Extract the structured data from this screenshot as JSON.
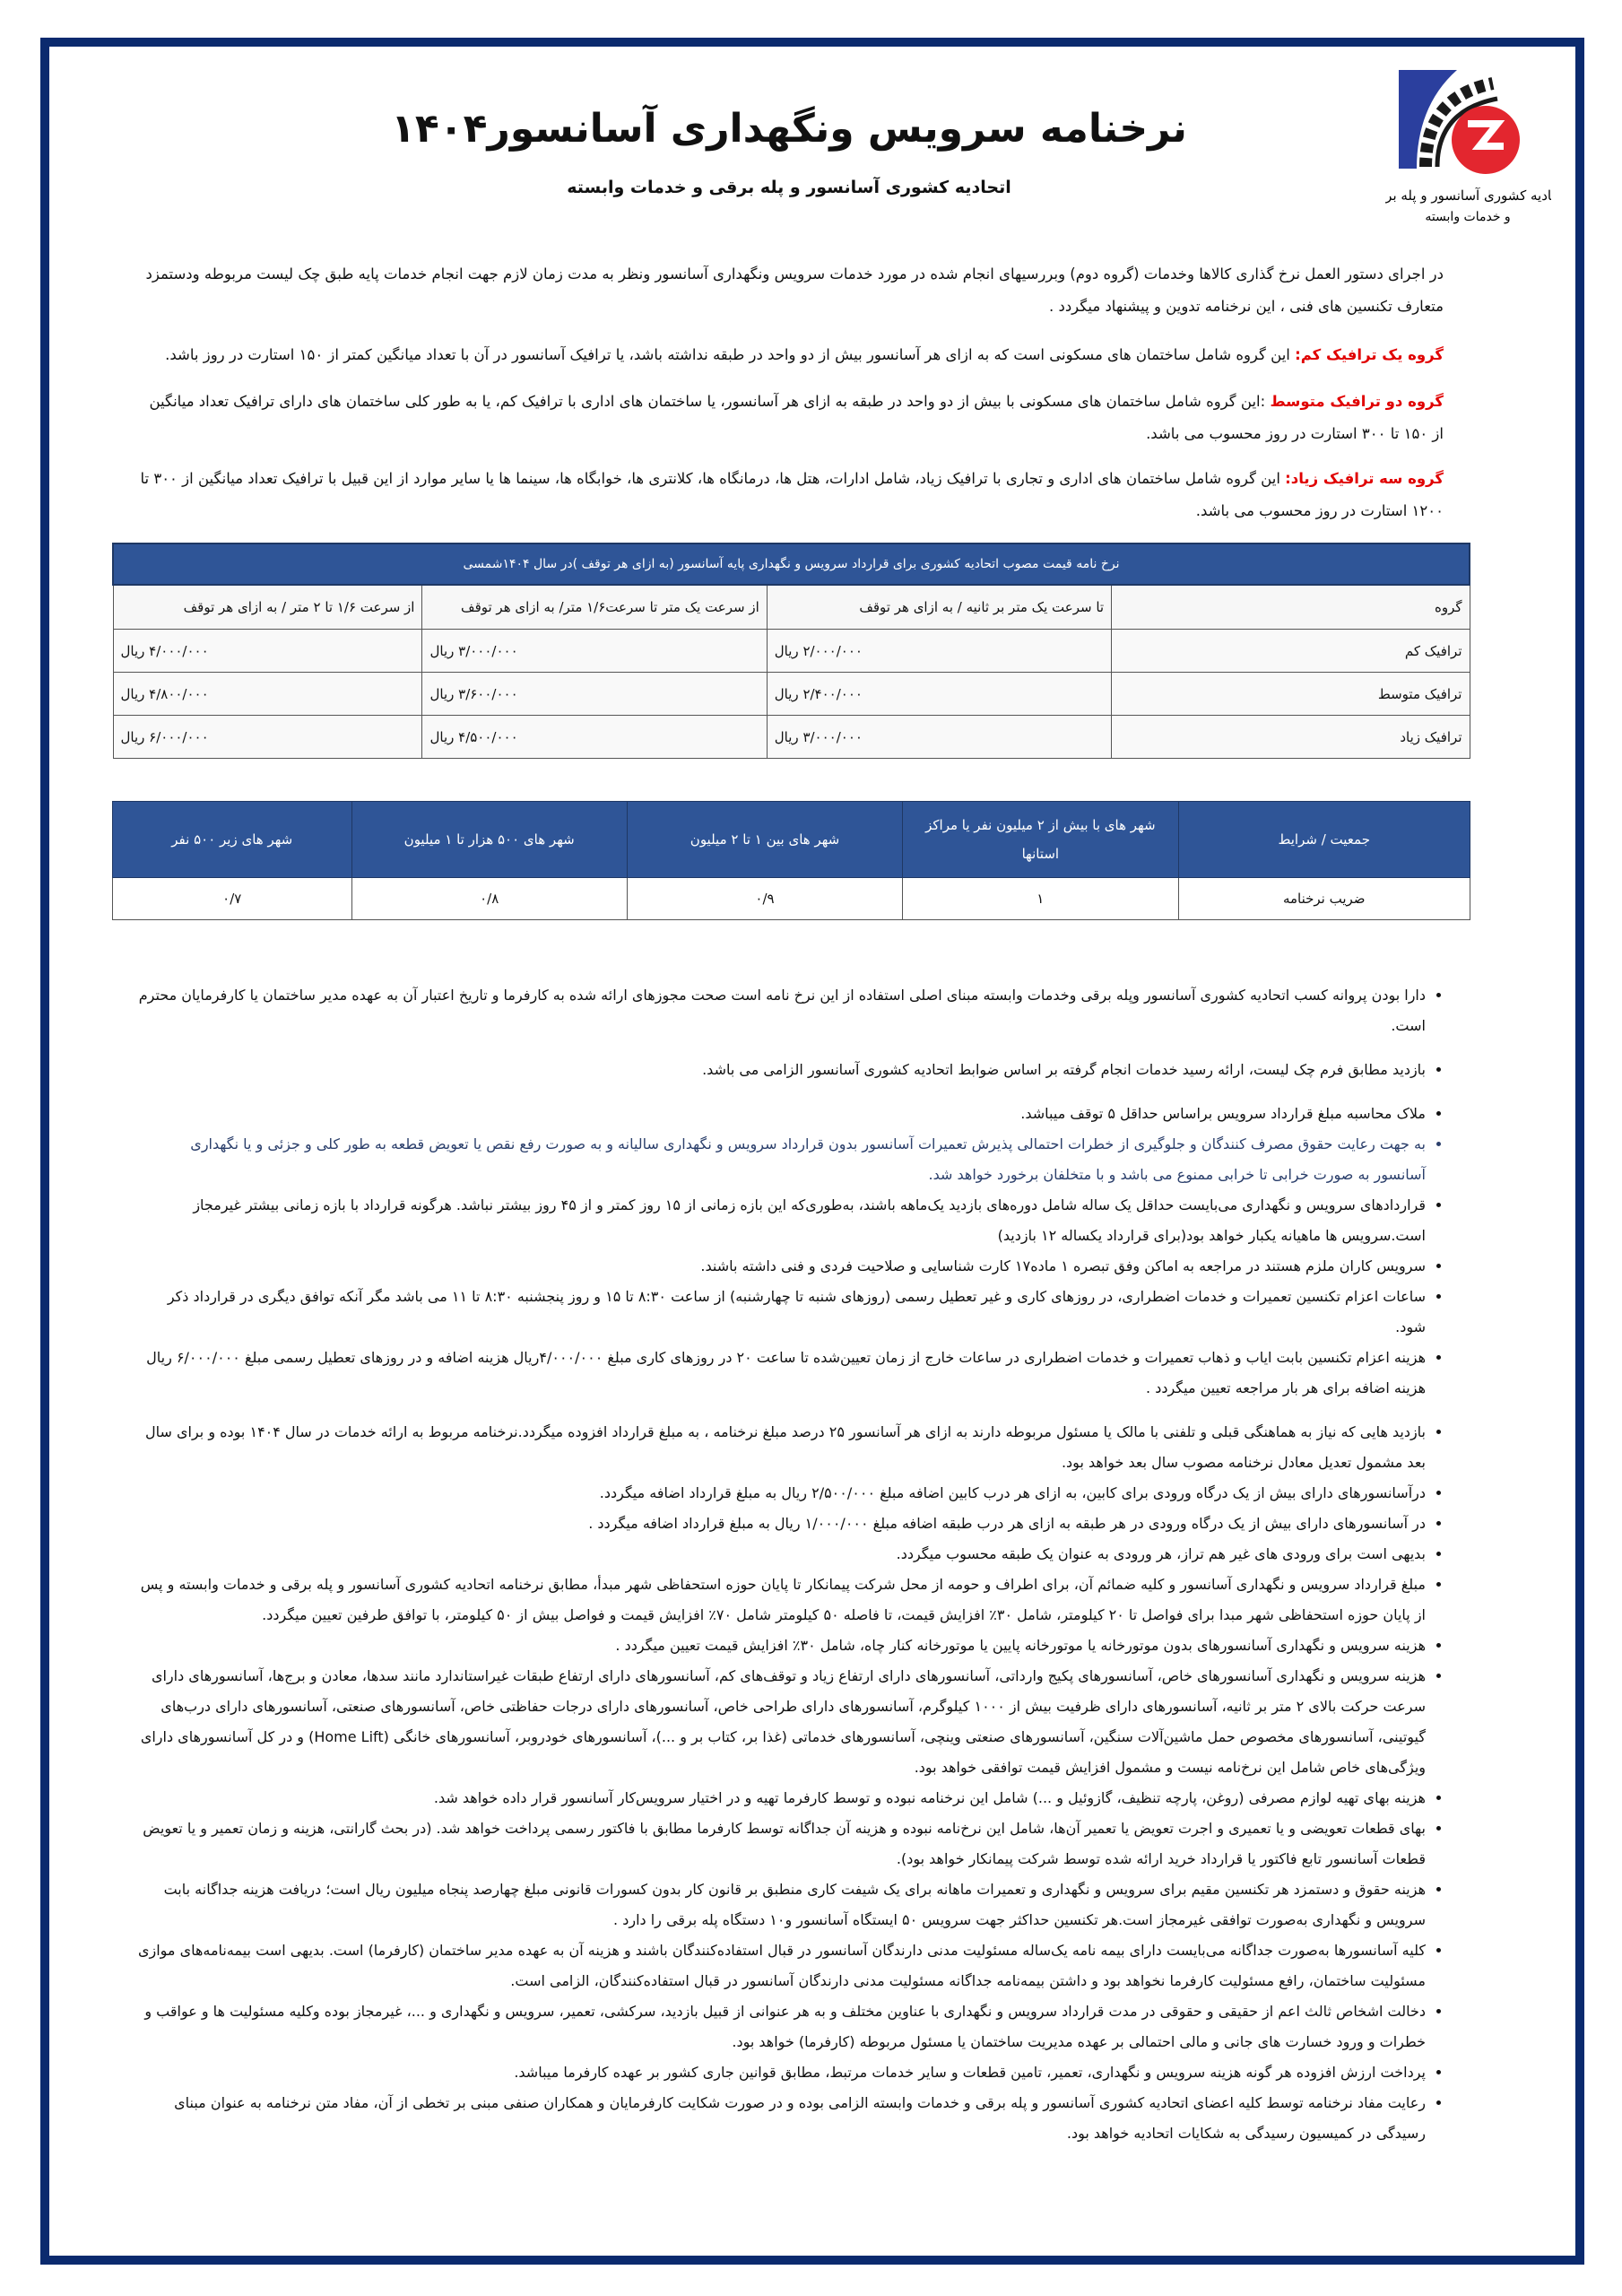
{
  "logo": {
    "text": "اتحادیه کشوری آسانسور و پله برقی و خدمات وابسته",
    "colors": {
      "blue": "#2b3f9e",
      "red": "#e3262f",
      "gear": "#1a1a1a"
    }
  },
  "header": {
    "title": "نرخنامه سرویس ونگهداری آسانسور۱۴۰۴",
    "subtitle": "اتحادیه کشوری آسانسور و پله برقی و خدمات وابسته"
  },
  "intro": "در اجرای دستور العمل نرخ گذاری کالاها وخدمات (گروه دوم) وبررسیهای انجام شده در مورد خدمات سرویس ونگهداری آسانسور ونظر به مدت زمان لازم جهت انجام خدمات پایه طبق چک لیست مربوطه ودستمزد متعارف تکنسین های فنی ، این نرخنامه تدوین و پیشنهاد میگردد .",
  "groups": [
    {
      "label": "گروه یک ترافیک کم:",
      "text": " این گروه شامل ساختمان های مسکونی است که به ازای هر آسانسور بیش از دو واحد در طبقه نداشته باشد، یا ترافیک آسانسور در آن با تعداد میانگین کمتر از ۱۵۰ استارت در روز باشد."
    },
    {
      "label": "گروه دو ترافیک متوسط",
      "text": " :این گروه شامل ساختمان های مسکونی با بیش از دو واحد در طبقه به ازای هر آسانسور، یا ساختمان های اداری با ترافیک کم، یا به طور کلی ساختمان های دارای ترافیک تعداد میانگین از ۱۵۰ تا ۳۰۰ استارت در روز محسوب می باشد."
    },
    {
      "label": "گروه سه ترافیک زیاد:",
      "text": " این گروه شامل ساختمان های اداری و تجاری با ترافیک زیاد، شامل ادارات، هتل ها، درمانگاه ها، کلانتری ها، خوابگاه ها، سینما ها یا سایر موارد از این قبیل با ترافیک تعداد میانگین از ۳۰۰ تا ۱۲۰۰ استارت در روز محسوب می باشد."
    }
  ],
  "price_table": {
    "title": "نرخ نامه قیمت مصوب اتحادیه کشوری برای قرارداد سرویس و نگهداری پایه آسانسور (به ازای هر توقف )در سال ۱۴۰۴شمسی",
    "columns": [
      "گروه",
      "تا سرعت یک متر بر ثانیه / به ازای هر توقف",
      "از سرعت یک متر تا سرعت۱/۶ متر/ به ازای هر توقف",
      "از سرعت ۱/۶ تا ۲ متر / به ازای هر توقف"
    ],
    "rows": [
      {
        "group": "ترافیک کم",
        "values": [
          "۲/۰۰۰/۰۰۰ ریال",
          "۳/۰۰۰/۰۰۰ ریال",
          "۴/۰۰۰/۰۰۰ ریال"
        ]
      },
      {
        "group": "ترافیک متوسط",
        "values": [
          "۲/۴۰۰/۰۰۰ ریال",
          "۳/۶۰۰/۰۰۰ ریال",
          "۴/۸۰۰/۰۰۰ ریال"
        ]
      },
      {
        "group": "ترافیک زیاد",
        "values": [
          "۳/۰۰۰/۰۰۰ ریال",
          "۴/۵۰۰/۰۰۰ ریال",
          "۶/۰۰۰/۰۰۰ ریال"
        ]
      }
    ]
  },
  "coef_table": {
    "columns": [
      "جمعیت / شرایط",
      "شهر های با بیش از ۲ میلیون نفر یا مراکز استانها",
      "شهر های بین ۱ تا ۲ میلیون",
      "شهر های ۵۰۰ هزار تا ۱ میلیون",
      "شهر های زیر ۵۰۰ نفر"
    ],
    "row": [
      "ضریب نرخنامه",
      "۱",
      "۰/۹",
      "۰/۸",
      "۰/۷"
    ]
  },
  "notes": [
    "دارا بودن پروانه کسب اتحادیه کشوری آسانسور  وپله برقی وخدمات وابسته مبنای اصلی استفاده از این نرخ نامه است صحت مجوزهای ارائه شده به کارفرما و تاریخ اعتبار آن به عهده مدیر ساختمان یا کارفرمایان محترم است.",
    "بازدید مطابق فرم چک لیست، ارائه رسید خدمات انجام گرفته بر اساس ضوابط اتحادیه کشوری آسانسور الزامی می باشد.",
    "ملاک محاسبه مبلغ قرارداد سرویس براساس حداقل ۵ توقف میباشد.",
    "به جهت رعایت حقوق مصرف کنندگان و جلوگیری از خطرات احتمالی پذیرش تعمیرات آسانسور بدون قرارداد سرویس و نگهداری سالیانه و به صورت رفع نقص یا تعویض قطعه به طور کلی و جزئی و یا نگهداری آسانسور به صورت خرابی تا خرابی ممنوع می باشد و با متخلفان برخورد خواهد شد.",
    "قراردادهای سرویس و نگهداری می‌بایست حداقل یک ساله شامل دوره‌های بازدید یک‌ماهه باشند، به‌طوری‌که این بازه زمانی از ۱۵ روز کمتر و از ۴۵ روز بیشتر نباشد. هرگونه قرارداد با بازه زمانی بیشتر غیرمجاز است.سرویس ها ماهیانه یکبار خواهد بود(برای قرارداد یکساله ۱۲ بازدید)",
    "سرویس کاران ملزم هستند در مراجعه به اماکن وفق تبصره ۱ ماده۱۷ کارت شناسایی و صلاحیت فردی و فنی داشته باشند.",
    "ساعات اعزام تکنسین تعمیرات و خدمات اضطراری، در روزهای کاری و غیر تعطیل رسمی (روزهای شنبه تا چهارشنبه) از ساعت ۸:۳۰ تا ۱۵ و روز پنجشنبه ۸:۳۰ تا ۱۱ می باشد مگر آنکه توافق دیگری در قرارداد ذکر شود.",
    "هزینه اعزام تکنسین بابت ایاب و ذهاب تعمیرات و خدمات اضطراری در ساعات خارج از زمان تعیین‌شده تا ساعت ۲۰ در روزهای کاری مبلغ ۴/۰۰۰/۰۰۰ریال هزینه اضافه و در روزهای تعطیل رسمی مبلغ ۶/۰۰۰/۰۰۰ ریال هزینه اضافه برای هر بار مراجعه تعیین میگردد .",
    "بازدید هایی که نیاز به هماهنگی قبلی و تلفنی با مالک یا مسئول مربوطه دارند به ازای هر آسانسور ۲۵ درصد مبلغ نرخنامه ، به مبلغ قرارداد افزوده میگردد.نرخنامه مربوط به ارائه خدمات در سال ۱۴۰۴ بوده و برای سال بعد مشمول تعدیل معادل نرخنامه مصوب سال بعد خواهد بود.",
    "درآسانسورهای دارای بیش از یک درگاه ورودی برای کابین، به ازای هر درب کابین اضافه مبلغ ۲/۵۰۰/۰۰۰ ریال به مبلغ قرارداد اضافه میگردد.",
    "در آسانسورهای دارای بیش از یک درگاه ورودی در هر طبقه به ازای هر درب طبقه اضافه مبلغ ۱/۰۰۰/۰۰۰ ریال به مبلغ قرارداد اضافه میگردد .",
    "بدیهی است برای ورودی های غیر هم تراز، هر ورودی به عنوان یک طبقه محسوب میگردد.",
    "مبلغ قرارداد سرویس و نگهداری آسانسور و کلیه ضمائم آن، برای اطراف و حومه از محل شرکت پیمانکار تا پایان حوزه استحفاظی شهر مبدأ، مطابق نرخنامه اتحادیه کشوری آسانسور و پله برقی و خدمات وابسته و پس از پایان حوزه استحفاظی شهر مبدا برای فواصل تا ۲۰ کیلومتر، شامل ۳۰٪ افزایش قیمت، تا فاصله ۵۰ کیلومتر شامل ۷۰٪ افزایش قیمت و فواصل بیش از ۵۰ کیلومتر، با توافق طرفین تعیین میگردد.",
    "هزینه سرویس و نگهداری آسانسورهای بدون موتورخانه  یا موتورخانه پایین  یا موتورخانه کنار چاه، شامل ۳۰٪ افزایش قیمت تعیین میگردد .",
    "هزینه سرویس و نگهداری آسانسورهای خاص، آسانسورهای پکیج وارداتی، آسانسورهای دارای ارتفاع زیاد و توقف‌های کم، آسانسورهای دارای ارتفاع طبقات غیراستاندارد مانند سدها، معادن و برج‌ها، آسانسورهای دارای سرعت حرکت بالای ۲ متر بر ثانیه، آسانسورهای دارای ظرفیت بیش از ۱۰۰۰ کیلوگرم، آسانسورهای دارای طراحی خاص، آسانسورهای دارای درجات حفاظتی خاص، آسانسورهای صنعتی، آسانسورهای دارای درب‌های گیوتینی، آسانسورهای مخصوص حمل ماشین‌آلات سنگین، آسانسورهای صنعتی وینچی، آسانسورهای خدماتی (غذا بر، کتاب بر و ...)، آسانسورهای خودروبر، آسانسورهای خانگی (Home Lift) و در کل آسانسورهای دارای ویژگی‌های خاص شامل این نرخ‌نامه نیست و مشمول افزایش قیمت توافقی خواهد بود.",
    "هزینه بهای تهیه لوازم مصرفی (روغن، پارچه تنظیف، گازوئیل و ...) شامل این نرخنامه نبوده و توسط کارفرما تهیه و در اختیار سرویس‌کار آسانسور قرار داده خواهد شد.",
    "بهای قطعات تعویضی و یا تعمیری و اجرت تعویض یا تعمیر آن‌ها، شامل این نرخ‌نامه نبوده و هزینه آن جداگانه توسط کارفرما مطابق با فاکتور رسمی پرداخت خواهد شد. (در بحث گارانتی، هزینه و زمان تعمیر و یا تعویض قطعات آسانسور تابع فاکتور یا قرارداد خرید ارائه شده توسط شرکت پیمانکار خواهد بود).",
    "هزینه حقوق و دستمزد هر تکنسین مقیم برای سرویس و نگهداری و تعمیرات ماهانه برای یک شیفت کاری منطبق بر قانون کار بدون کسورات قانونی مبلغ چهارصد پنجاه میلیون ریال است؛ دریافت هزینه جداگانه بابت سرویس و نگهداری به‌صورت توافقی غیرمجاز است.هر تکنسین حداکثر جهت سرویس ۵۰ ایستگاه آسانسور و۱۰ دستگاه پله برقی را دارد .",
    "کلیه آسانسورها به‌صورت جداگانه می‌بایست دارای بیمه نامه یک‌ساله مسئولیت مدنی دارندگان آسانسور در قبال استفاده‌کنندگان باشند و هزینه آن به عهده مدیر ساختمان (کارفرما) است. بدیهی است بیمه‌نامه‌های موازی مسئولیت ساختمان، رافع مسئولیت کارفرما نخواهد بود و داشتن بیمه‌نامه جداگانه مسئولیت مدنی دارندگان آسانسور در قبال استفاده‌کنندگان، الزامی است.",
    "دخالت اشخاص ثالث اعم از حقیقی و حقوقی در مدت قرارداد سرویس و نگهداری با عناوین مختلف و به هر عنوانی از قبیل بازدید، سرکشی، تعمیر، سرویس و نگهداری و ...، غیرمجاز بوده وکلیه مسئولیت ها و عواقب و خطرات و ورود خسارت های جانی و مالی احتمالی بر عهده مدیریت ساختمان یا مسئول مربوطه (کارفرما) خواهد بود.",
    "پرداخت ارزش افزوده هر گونه هزینه سرویس و نگهداری، تعمیر، تامین قطعات و سایر خدمات مرتبط، مطابق قوانین جاری کشور بر عهده کارفرما میباشد.",
    "رعایت مفاد نرخنامه توسط کلیه اعضای اتحادیه کشوری آسانسور و پله برقی و خدمات وابسته الزامی بوده و در صورت شکایت کارفرمایان و همکاران صنفی مبنی بر تخطی از آن، مفاد متن نرخنامه به عنوان مبنای رسیدگی در کمیسیون رسیدگی به شکایات اتحادیه خواهد بود."
  ]
}
